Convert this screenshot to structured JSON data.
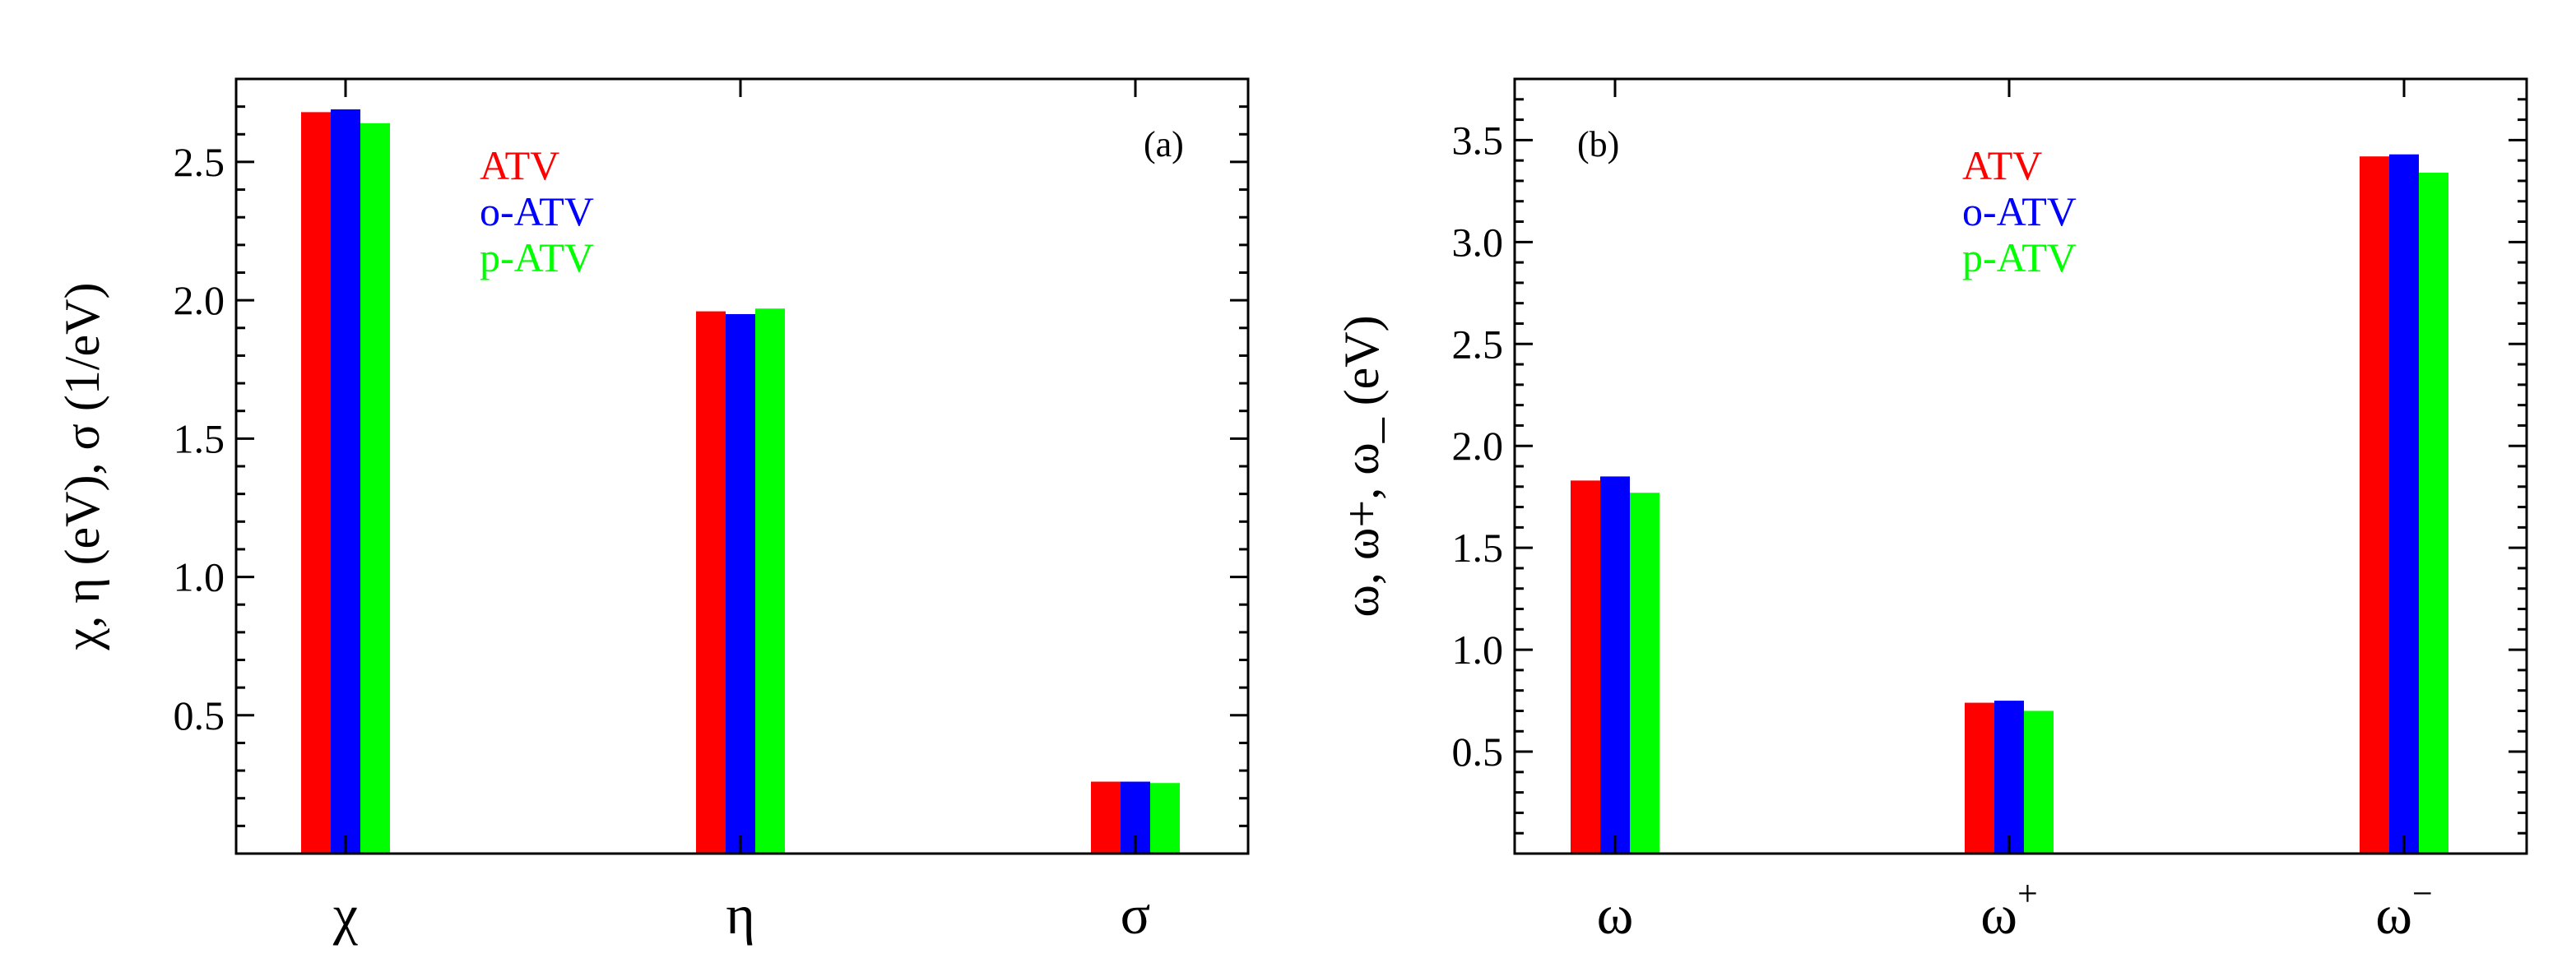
{
  "colors": {
    "ATV": "#ff0000",
    "o-ATV": "#0000ff",
    "p-ATV": "#00ff00"
  },
  "chart_data": [
    {
      "type": "bar",
      "panel_label": "(a)",
      "ylabel": "χ, η (eV), σ (1/eV)",
      "categories": [
        "χ",
        "η",
        "σ"
      ],
      "series": [
        {
          "name": "ATV",
          "values": [
            2.68,
            1.96,
            0.26
          ]
        },
        {
          "name": "o-ATV",
          "values": [
            2.69,
            1.95,
            0.26
          ]
        },
        {
          "name": "p-ATV",
          "values": [
            2.64,
            1.97,
            0.255
          ]
        }
      ],
      "ylim": [
        0.0,
        2.8
      ],
      "yticks": [
        "0.5",
        "1.0",
        "1.5",
        "2.0",
        "2.5"
      ],
      "legend": "upper-center",
      "grid": false
    },
    {
      "type": "bar",
      "panel_label": "(b)",
      "ylabel": "ω, ω+, ω_ (eV)",
      "categories": [
        "ω",
        "ω+",
        "ω−"
      ],
      "series": [
        {
          "name": "ATV",
          "values": [
            1.83,
            0.74,
            3.42
          ]
        },
        {
          "name": "o-ATV",
          "values": [
            1.85,
            0.75,
            3.43
          ]
        },
        {
          "name": "p-ATV",
          "values": [
            1.77,
            0.7,
            3.34
          ]
        }
      ],
      "ylim": [
        0.0,
        3.8
      ],
      "yticks": [
        "0.5",
        "1.0",
        "1.5",
        "2.0",
        "2.5",
        "3.0",
        "3.5"
      ],
      "legend": "upper-center",
      "grid": false
    }
  ]
}
